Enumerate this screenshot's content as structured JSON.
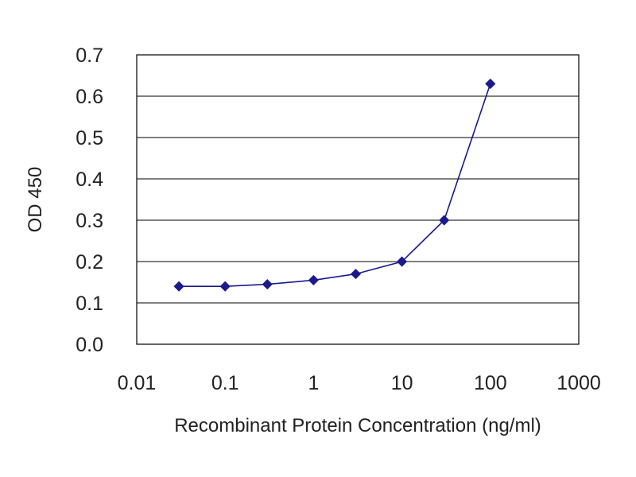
{
  "chart_data": {
    "type": "line",
    "title": "",
    "xlabel": "Recombinant Protein Concentration (ng/ml)",
    "ylabel": "OD 450",
    "x_scale": "log",
    "xlim": [
      0.01,
      1000
    ],
    "ylim": [
      0.0,
      0.7
    ],
    "x_ticks": [
      "0.01",
      "0.1",
      "1",
      "10",
      "100",
      "1000"
    ],
    "y_ticks": [
      "0.0",
      "0.1",
      "0.2",
      "0.3",
      "0.4",
      "0.5",
      "0.6",
      "0.7"
    ],
    "grid": "horizontal",
    "legend": "none",
    "series": [
      {
        "x": [
          0.03,
          0.1,
          0.3,
          1,
          3,
          10,
          30,
          100
        ],
        "y": [
          0.14,
          0.14,
          0.145,
          0.155,
          0.17,
          0.2,
          0.3,
          0.63
        ]
      }
    ],
    "colors": {
      "series": "#1a1a8c",
      "grid": "#000000",
      "frame": "#000000",
      "text": "#222222"
    }
  }
}
